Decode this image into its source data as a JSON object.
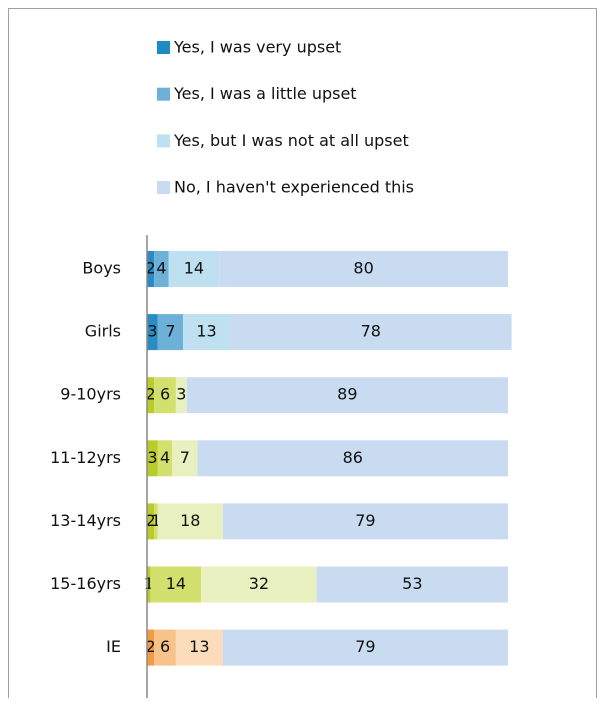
{
  "chart_data": {
    "type": "stacked-bar-horizontal",
    "categories": [
      "Boys",
      "Girls",
      "9-10yrs",
      "11-12yrs",
      "13-14yrs",
      "15-16yrs",
      "IE"
    ],
    "xlim": [
      0,
      101
    ],
    "series": [
      {
        "name": "Yes, I was very upset",
        "color": "#1f8bc4",
        "colors": [
          "#2b8cc4",
          "#2b8cc4",
          "#b9cc2c",
          "#b9cc2c",
          "#b9cc2c",
          "#b9cc2c",
          "#f29a45"
        ],
        "values": [
          2,
          3,
          2,
          3,
          2,
          1,
          2
        ]
      },
      {
        "name": "Yes, I was a little upset",
        "color": "#6db0d8",
        "colors": [
          "#6db0d8",
          "#6db0d8",
          "#d2e06e",
          "#d2e06e",
          "#d2e06e",
          "#d2e06e",
          "#f7c38a"
        ],
        "values": [
          4,
          7,
          6,
          4,
          1,
          14,
          6
        ]
      },
      {
        "name": "Yes, but I was not at all upset",
        "color": "#bfe0f1",
        "colors": [
          "#bfe0f1",
          "#bfe0f1",
          "#e8f0bf",
          "#e8f0bf",
          "#e8f0bf",
          "#e8f0bf",
          "#fcdcba"
        ],
        "values": [
          14,
          13,
          3,
          7,
          18,
          32,
          13
        ]
      },
      {
        "name": "No, I haven't experienced this",
        "color": "#c8dbf1",
        "colors": [
          "#c8dbf1",
          "#c8dbf1",
          "#c8dbf1",
          "#c8dbf1",
          "#c8dbf1",
          "#c8dbf1",
          "#c8dbf1"
        ],
        "values": [
          80,
          78,
          89,
          86,
          79,
          53,
          79
        ]
      }
    ]
  }
}
